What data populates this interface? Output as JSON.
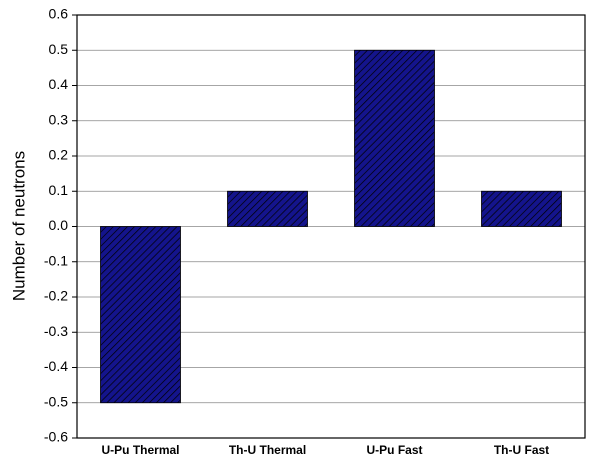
{
  "chart_data": {
    "type": "bar",
    "y_label": "Number of neutrons",
    "categories": [
      "U-Pu Thermal",
      "Th-U Thermal",
      "U-Pu Fast",
      "Th-U Fast"
    ],
    "values": [
      -0.5,
      0.1,
      0.5,
      0.1
    ],
    "color": "#14148c",
    "ylim": [
      -0.6,
      0.6
    ],
    "yticks": [
      -0.6,
      -0.5,
      -0.4,
      -0.3,
      -0.2,
      -0.1,
      {
        "value": 0,
        "label": "0.0"
      },
      0.1,
      0.2,
      0.3,
      0.4,
      0.5,
      0.6
    ],
    "grid": true
  }
}
